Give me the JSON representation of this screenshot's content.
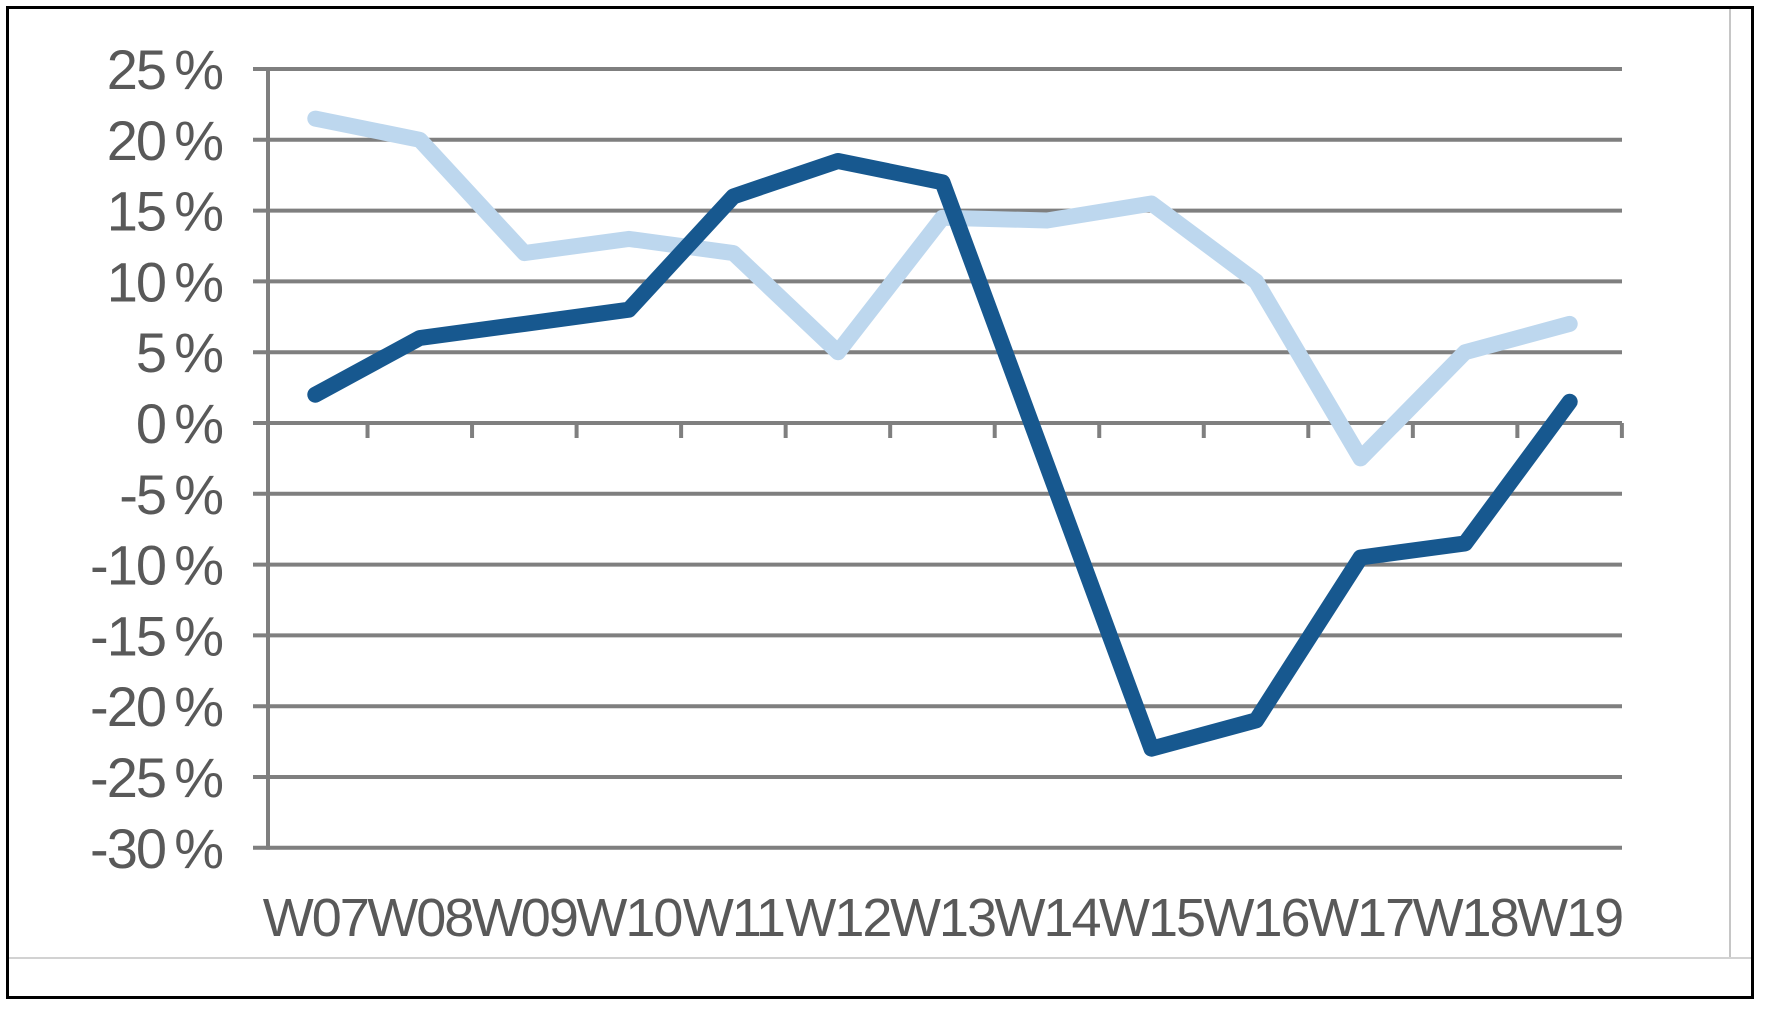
{
  "chart_data": {
    "type": "line",
    "title": "",
    "categories": [
      "W07",
      "W08",
      "W09",
      "W10",
      "W11",
      "W12",
      "W13",
      "W14",
      "W15",
      "W16",
      "W17",
      "W18",
      "W19"
    ],
    "series": [
      {
        "name": "light-blue-series",
        "color": "#bdd7ee",
        "stroke_width": 16,
        "values": [
          21.5,
          20,
          12,
          13,
          12,
          5,
          14.5,
          14.3,
          15.5,
          10,
          -2.5,
          5,
          7
        ]
      },
      {
        "name": "dark-blue-series",
        "color": "#17588f",
        "stroke_width": 16,
        "values": [
          2,
          6,
          7,
          8,
          16,
          18.5,
          17,
          -3,
          -23,
          -21,
          -9.5,
          -8.5,
          1.5
        ]
      }
    ],
    "y_axis": {
      "unit": "%",
      "min": -30,
      "max": 25,
      "tick_step": 5,
      "tick_values": [
        25,
        20,
        15,
        10,
        5,
        0,
        -5,
        -10,
        -15,
        -20,
        -25,
        -30
      ],
      "tick_labels": [
        "25 %",
        "20 %",
        "15 %",
        "10 %",
        "5 %",
        "0 %",
        "-5 %",
        "-10 %",
        "-15 %",
        "-20 %",
        "-25 %",
        "-30 %"
      ]
    },
    "x_axis": {
      "labels": [
        "W07",
        "W08",
        "W09",
        "W10",
        "W11",
        "W12",
        "W13",
        "W14",
        "W15",
        "W16",
        "W17",
        "W18",
        "W19"
      ]
    },
    "legend": "none",
    "grid": true,
    "colors": {
      "grid_line": "#7f7f7f",
      "axis_line": "#7f7f7f",
      "tick_mark": "#7f7f7f",
      "label_text": "#595959",
      "background": "#ffffff",
      "frame_border": "#000000"
    }
  }
}
